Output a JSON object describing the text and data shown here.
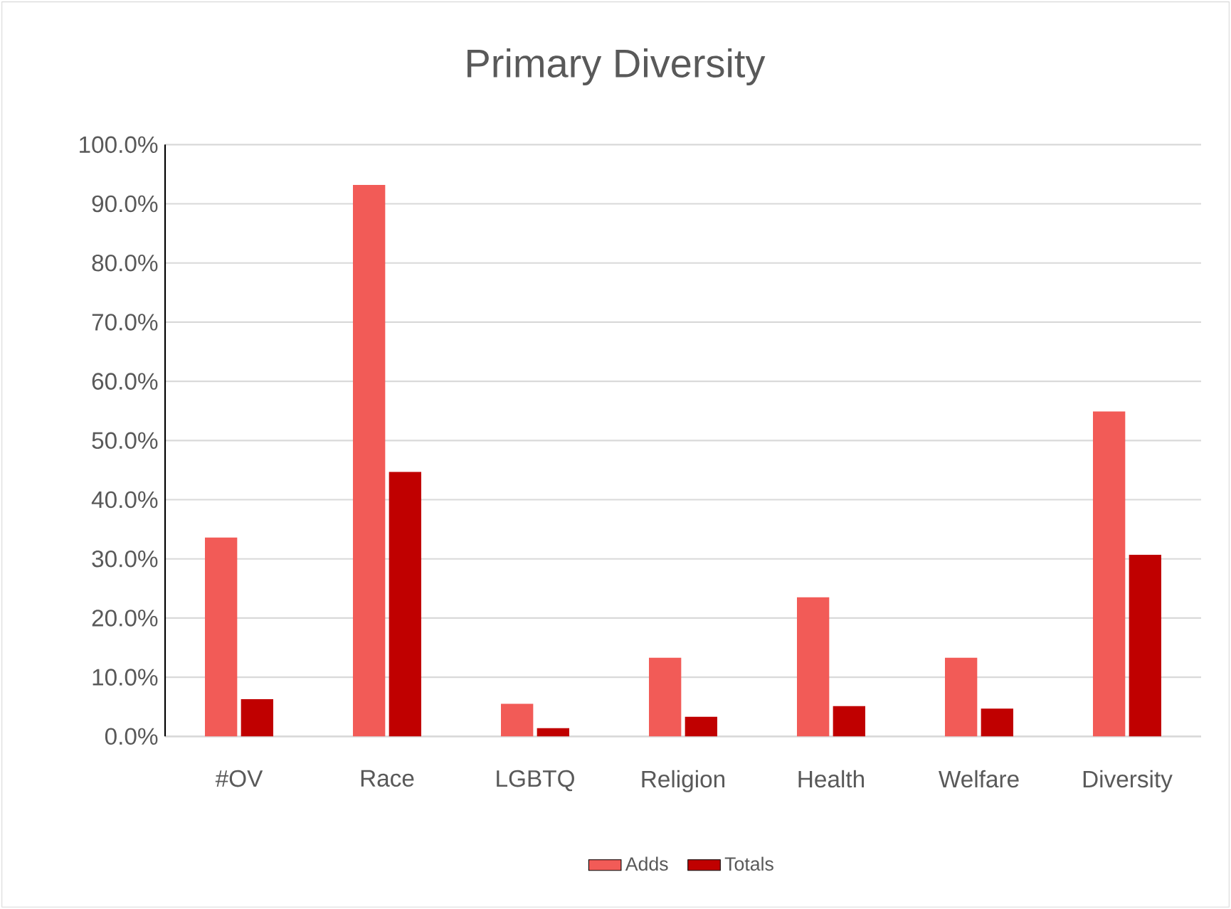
{
  "chart_data": {
    "type": "bar",
    "title": "Primary Diversity",
    "categories": [
      "#OV",
      "Race",
      "LGBTQ",
      "Religion",
      "Health",
      "Welfare",
      "Diversity"
    ],
    "series": [
      {
        "name": "Adds",
        "color": "#f25b57",
        "values": [
          33.6,
          93.2,
          5.5,
          13.3,
          23.5,
          13.3,
          54.9
        ]
      },
      {
        "name": "Totals",
        "color": "#c00000",
        "values": [
          6.3,
          44.7,
          1.4,
          3.3,
          5.1,
          4.7,
          30.7
        ]
      }
    ],
    "ylim": [
      0,
      100
    ],
    "yticks": [
      {
        "value": 0,
        "label": "0.0%"
      },
      {
        "value": 10,
        "label": "10.0%"
      },
      {
        "value": 20,
        "label": "20.0%"
      },
      {
        "value": 30,
        "label": "30.0%"
      },
      {
        "value": 40,
        "label": "40.0%"
      },
      {
        "value": 50,
        "label": "50.0%"
      },
      {
        "value": 60,
        "label": "60.0%"
      },
      {
        "value": 70,
        "label": "70.0%"
      },
      {
        "value": 80,
        "label": "80.0%"
      },
      {
        "value": 90,
        "label": "90.0%"
      },
      {
        "value": 100,
        "label": "100.0%"
      }
    ],
    "grid": "y",
    "legend": "bottom"
  }
}
